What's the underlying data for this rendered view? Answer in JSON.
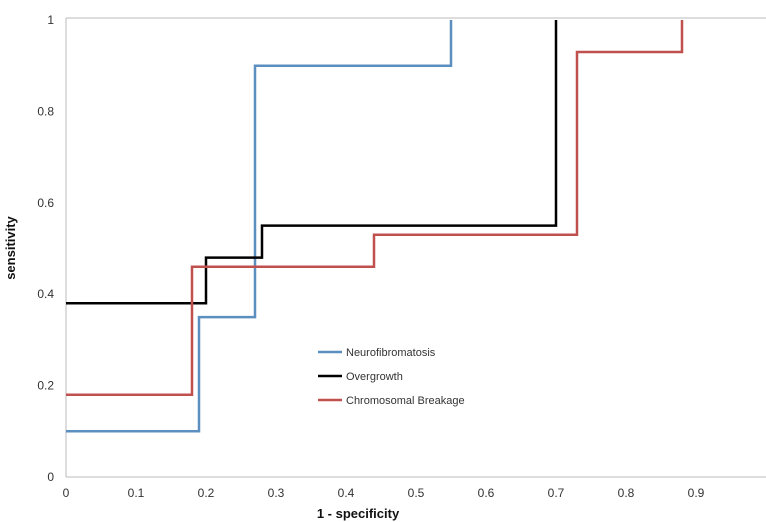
{
  "chart_data": {
    "type": "line",
    "step": true,
    "xlabel": "1 - specificity",
    "ylabel": "sensitivity",
    "xlim": [
      0,
      1.0
    ],
    "ylim": [
      0,
      1
    ],
    "x_ticks": [
      "0",
      "0.1",
      "0.2",
      "0.3",
      "0.4",
      "0.5",
      "0.6",
      "0.7",
      "0.8",
      "0.9"
    ],
    "y_ticks": [
      "0",
      "0.2",
      "0.4",
      "0.6",
      "0.8",
      "1"
    ],
    "grid": false,
    "legend_position": "center",
    "series": [
      {
        "name": "Neurofibromatosis",
        "color": "#5b8fc0",
        "x": [
          0,
          0.19,
          0.19,
          0.27,
          0.27,
          0.55,
          0.55
        ],
        "y": [
          0.1,
          0.1,
          0.35,
          0.35,
          0.9,
          0.9,
          1.0
        ]
      },
      {
        "name": "Overgrowth",
        "color": "#000000",
        "x": [
          0,
          0.2,
          0.2,
          0.28,
          0.28,
          0.7,
          0.7
        ],
        "y": [
          0.38,
          0.38,
          0.48,
          0.48,
          0.55,
          0.55,
          1.0
        ]
      },
      {
        "name": "Chromosomal Breakage",
        "color": "#c0504d",
        "x": [
          0,
          0.18,
          0.18,
          0.44,
          0.44,
          0.73,
          0.73,
          0.88,
          0.88
        ],
        "y": [
          0.18,
          0.18,
          0.46,
          0.46,
          0.53,
          0.53,
          0.93,
          0.93,
          1.0
        ]
      }
    ]
  }
}
